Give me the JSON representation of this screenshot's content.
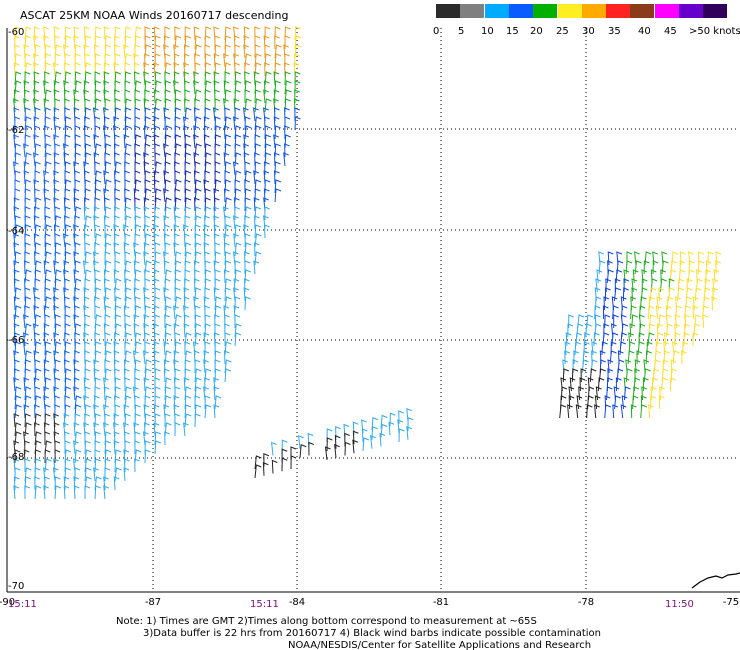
{
  "title": "ASCAT 25KM NOAA Winds 20160717 descending",
  "legend": {
    "labels": [
      "0",
      "5",
      "10",
      "15",
      "20",
      "25",
      "30",
      "35",
      "40",
      "45",
      ">50 knots"
    ],
    "colors": [
      "#2b2b2b",
      "#7f7f7f",
      "#00aaff",
      "#0a5bff",
      "#00b000",
      "#ffee22",
      "#ffaa00",
      "#ff2222",
      "#8b3a1a",
      "#ff00ff",
      "#6600cc",
      "#30005a"
    ]
  },
  "map": {
    "lon_ticks": [
      "-90",
      "-87",
      "-84",
      "-81",
      "-78",
      "-75"
    ],
    "lat_ticks": [
      "-60",
      "-62",
      "-64",
      "-66",
      "-68",
      "-70"
    ],
    "gridlines": true
  },
  "times": [
    "15:11",
    "15:11",
    "11:50"
  ],
  "notes": [
    "Note: 1) Times are GMT 2)Times along bottom correspond to measurement at ~65S",
    "3)Data buffer is 22 hrs from 20160717 4) Black wind barbs indicate possible contamination",
    "NOAA/NESDIS/Center for Satellite Applications and Research"
  ]
}
